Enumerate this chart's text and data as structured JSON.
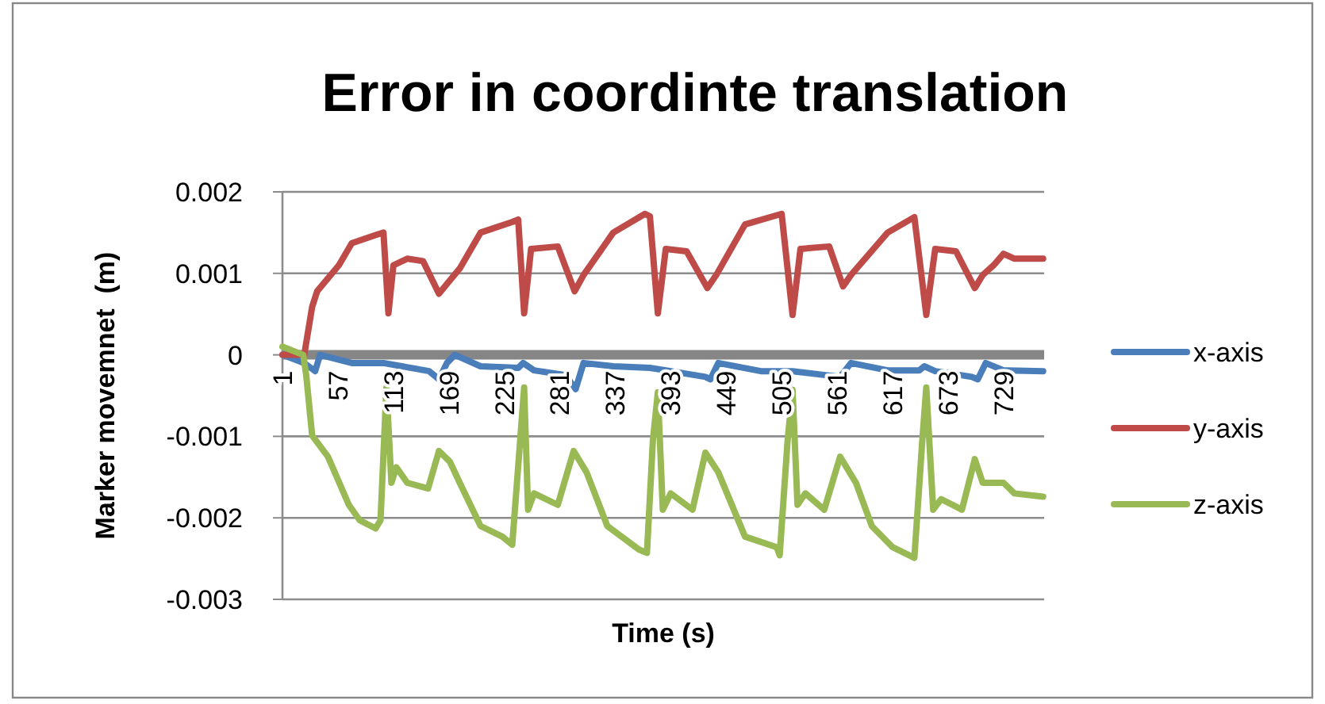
{
  "chart_data": {
    "type": "line",
    "title": "Error in coordinte translation",
    "xlabel": "Time (s)",
    "ylabel": "Marker movemnet  (m)",
    "xlim": [
      1,
      770
    ],
    "xticks": [
      1,
      57,
      113,
      169,
      225,
      281,
      337,
      393,
      449,
      505,
      561,
      617,
      673,
      729
    ],
    "ylim": [
      -0.003,
      0.002
    ],
    "yticks": [
      -0.003,
      -0.002,
      -0.001,
      0,
      0.001,
      0.002
    ],
    "grid": "y",
    "legend": "right",
    "marker": "none",
    "line_style": "solid",
    "series": [
      {
        "name": "x-axis",
        "color": "#4a7ebb",
        "x": [
          1,
          23,
          34,
          39,
          71,
          103,
          149,
          159,
          167,
          175,
          201,
          239,
          244,
          255,
          287,
          297,
          305,
          335,
          372,
          393,
          428,
          433,
          441,
          484,
          516,
          564,
          575,
          612,
          644,
          649,
          660,
          697,
          703,
          711,
          729,
          769
        ],
        "values": [
          0,
          -0.0001,
          -0.0002,
          0,
          -0.0001,
          -0.0001,
          -0.0002,
          -0.0003,
          -0.0001,
          0,
          -0.00014,
          -0.00016,
          -0.0001,
          -0.00019,
          -0.00025,
          -0.00042,
          -0.0001,
          -0.00014,
          -0.00016,
          -0.0002,
          -0.00027,
          -0.0003,
          -0.0001,
          -0.0002,
          -0.0002,
          -0.00027,
          -0.0001,
          -0.00019,
          -0.00019,
          -0.00014,
          -0.0002,
          -0.00027,
          -0.0003,
          -0.0001,
          -0.00019,
          -0.0002
        ]
      },
      {
        "name": "y-axis",
        "color": "#be4b48",
        "x": [
          1,
          23,
          31,
          36,
          58,
          71,
          95,
          103,
          108,
          113,
          127,
          143,
          159,
          167,
          180,
          201,
          233,
          239,
          245,
          252,
          279,
          296,
          305,
          335,
          367,
          372,
          380,
          388,
          409,
          430,
          439,
          468,
          505,
          516,
          524,
          553,
          567,
          575,
          612,
          639,
          651,
          660,
          681,
          700,
          708,
          719,
          729,
          740,
          769
        ],
        "values": [
          0,
          0,
          0.00059,
          0.00078,
          0.0011,
          0.00137,
          0.00147,
          0.0015,
          0.00051,
          0.0011,
          0.00118,
          0.00115,
          0.00075,
          0.00087,
          0.00106,
          0.0015,
          0.00163,
          0.00166,
          0.00051,
          0.0013,
          0.00133,
          0.00078,
          0.00098,
          0.0015,
          0.00173,
          0.0017,
          0.00051,
          0.0013,
          0.00127,
          0.00082,
          0.00098,
          0.0016,
          0.00173,
          0.00049,
          0.0013,
          0.00133,
          0.00084,
          0.00098,
          0.0015,
          0.00169,
          0.00049,
          0.0013,
          0.00127,
          0.00082,
          0.00098,
          0.0011,
          0.00124,
          0.00118,
          0.00118
        ]
      },
      {
        "name": "z-axis",
        "color": "#98b954",
        "x": [
          1,
          22,
          25,
          31,
          47,
          68,
          79,
          95,
          100,
          106,
          111,
          116,
          127,
          148,
          159,
          170,
          180,
          201,
          223,
          233,
          241,
          245,
          249,
          255,
          279,
          295,
          308,
          329,
          361,
          369,
          375,
          380,
          385,
          393,
          415,
          428,
          441,
          468,
          500,
          503,
          511,
          516,
          521,
          529,
          548,
          564,
          580,
          596,
          617,
          639,
          647,
          651,
          658,
          666,
          687,
          700,
          708,
          729,
          740,
          769
        ],
        "values": [
          0.0001,
          0,
          -0.00025,
          -0.00099,
          -0.00125,
          -0.00184,
          -0.00203,
          -0.00213,
          -0.00203,
          -0.0004,
          -0.00157,
          -0.00138,
          -0.00157,
          -0.00164,
          -0.00118,
          -0.00131,
          -0.00157,
          -0.0021,
          -0.00223,
          -0.00233,
          -0.00105,
          -0.0004,
          -0.0019,
          -0.0017,
          -0.00184,
          -0.00118,
          -0.00144,
          -0.0021,
          -0.00239,
          -0.00243,
          -0.00105,
          -0.00046,
          -0.0019,
          -0.0017,
          -0.0019,
          -0.0012,
          -0.00144,
          -0.00223,
          -0.00236,
          -0.00246,
          -0.00105,
          -0.00043,
          -0.00184,
          -0.0017,
          -0.0019,
          -0.00125,
          -0.00157,
          -0.0021,
          -0.00236,
          -0.00249,
          -0.00105,
          -0.0004,
          -0.0019,
          -0.00177,
          -0.0019,
          -0.00128,
          -0.00157,
          -0.00157,
          -0.0017,
          -0.00174
        ]
      }
    ]
  }
}
